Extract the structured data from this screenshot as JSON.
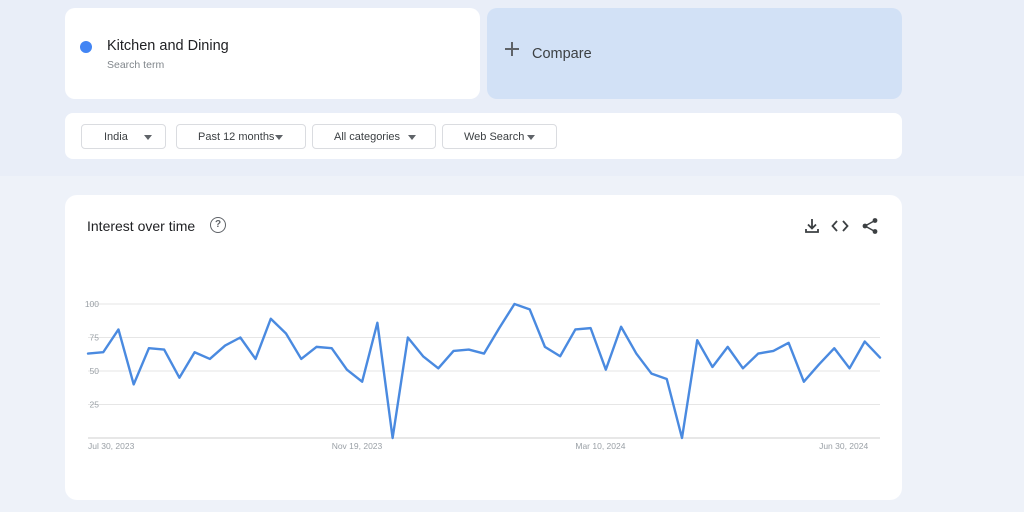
{
  "search_term": {
    "name": "Kitchen and Dining",
    "sub": "Search term",
    "color": "#4285f4"
  },
  "compare": {
    "label": "Compare",
    "icon": "plus-icon"
  },
  "filters": [
    {
      "id": "region",
      "label": "India"
    },
    {
      "id": "time",
      "label": "Past 12 months"
    },
    {
      "id": "category",
      "label": "All categories"
    },
    {
      "id": "property",
      "label": "Web Search"
    }
  ],
  "chart": {
    "title": "Interest over time",
    "actions": [
      "download-icon",
      "embed-code-icon",
      "share-icon"
    ]
  },
  "chart_data": {
    "type": "line",
    "title": "Interest over time",
    "xlabel": "",
    "ylabel": "",
    "ylim": [
      0,
      100
    ],
    "y_ticks": [
      25,
      50,
      75,
      100
    ],
    "x_ticks": [
      {
        "label": "Jul 30, 2023",
        "index": 0
      },
      {
        "label": "Nov 19, 2023",
        "index": 16
      },
      {
        "label": "Mar 10, 2024",
        "index": 32
      },
      {
        "label": "Jun 30, 2024",
        "index": 48
      }
    ],
    "grid": true,
    "line_color": "#4a8ae0",
    "series": [
      {
        "name": "Kitchen and Dining",
        "values": [
          63,
          64,
          81,
          40,
          67,
          66,
          45,
          64,
          59,
          69,
          75,
          59,
          89,
          78,
          59,
          68,
          67,
          51,
          42,
          86,
          0,
          75,
          61,
          52,
          65,
          66,
          63,
          82,
          100,
          96,
          68,
          61,
          81,
          82,
          51,
          83,
          63,
          48,
          44,
          0,
          73,
          53,
          68,
          52,
          63,
          65,
          71,
          42,
          55,
          67,
          52,
          72,
          60
        ]
      }
    ]
  }
}
